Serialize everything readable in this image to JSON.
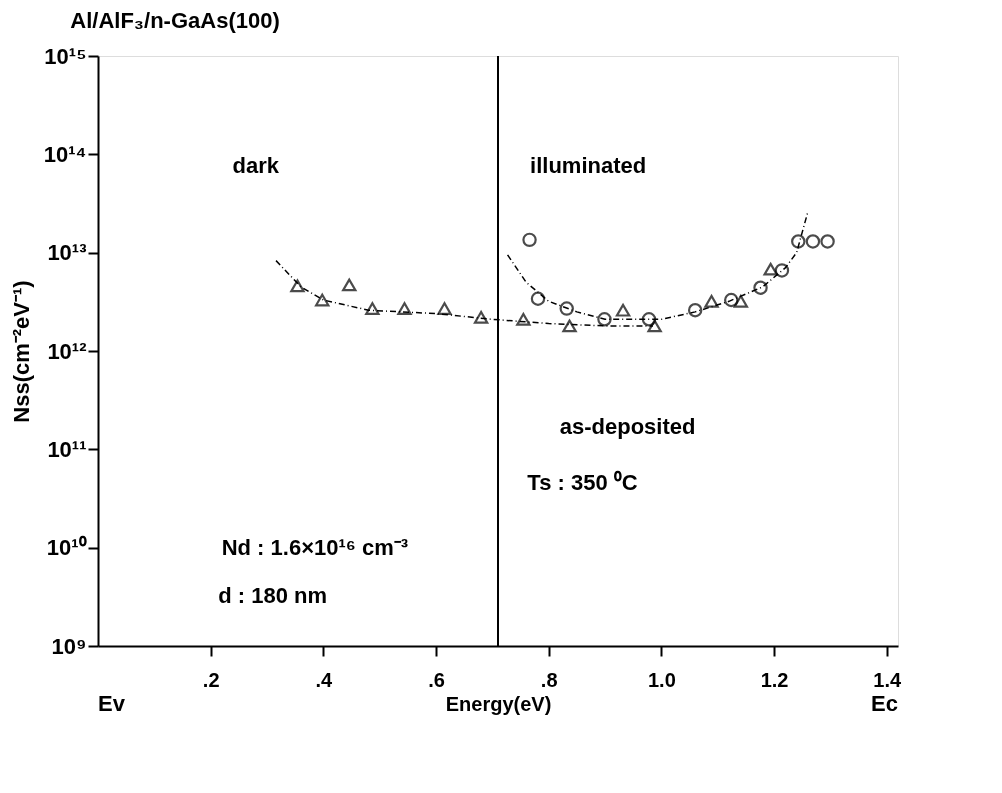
{
  "chart_data": {
    "type": "scatter",
    "title": "Al/AlF₃/n-GaAs(100)",
    "xlabel": "Energy(eV)",
    "ylabel": "Nss(cm⁻²eV⁻¹)",
    "log": "y",
    "grid": false,
    "xlim": [
      0,
      1.42
    ],
    "ylim": [
      1000000000.0,
      1000000000000000.0
    ],
    "xticks": [
      {
        "value": 0.2,
        "label": ".2"
      },
      {
        "value": 0.4,
        "label": ".4"
      },
      {
        "value": 0.6,
        "label": ".6"
      },
      {
        "value": 0.8,
        "label": ".8"
      },
      {
        "value": 1.0,
        "label": "1.0"
      },
      {
        "value": 1.2,
        "label": "1.2"
      },
      {
        "value": 1.4,
        "label": "1.4"
      }
    ],
    "yticks": [
      {
        "value": 1000000000.0,
        "label": "10⁹"
      },
      {
        "value": 10000000000.0,
        "label": "10¹⁰"
      },
      {
        "value": 100000000000.0,
        "label": "10¹¹"
      },
      {
        "value": 1000000000000.0,
        "label": "10¹²"
      },
      {
        "value": 10000000000000.0,
        "label": "10¹³"
      },
      {
        "value": 100000000000000.0,
        "label": "10¹⁴"
      },
      {
        "value": 1000000000000000.0,
        "label": "10¹⁵"
      }
    ],
    "series": [
      {
        "marker": "triangle",
        "color": "#000000",
        "x": [
          0.354,
          0.398,
          0.446,
          0.487,
          0.544,
          0.615,
          0.68,
          0.755,
          0.837,
          0.932,
          0.988,
          1.089,
          1.141,
          1.194
        ],
        "values": [
          4600000000000.0,
          3300000000000.0,
          4700000000000.0,
          2700000000000.0,
          2700000000000.0,
          2700000000000.0,
          2200000000000.0,
          2100000000000.0,
          1800000000000.0,
          2600000000000.0,
          1800000000000.0,
          3200000000000.0,
          3200000000000.0,
          6800000000000.0
        ]
      },
      {
        "marker": "circle",
        "color": "#000000",
        "x": [
          0.766,
          0.781,
          0.832,
          0.899,
          0.978,
          1.06,
          1.124,
          1.176,
          1.214,
          1.243,
          1.269,
          1.295
        ],
        "values": [
          13500000000000.0,
          3400000000000.0,
          2700000000000.0,
          2100000000000.0,
          2100000000000.0,
          2600000000000.0,
          3300000000000.0,
          4400000000000.0,
          6600000000000.0,
          13000000000000.0,
          13000000000000.0,
          13000000000000.0
        ]
      },
      {
        "type": "line",
        "line_style": "dashed",
        "color": "#000000",
        "x": [
          0.316,
          0.36,
          0.4,
          0.48,
          0.6,
          0.7,
          0.8,
          0.9,
          0.985
        ],
        "values": [
          8300000000000.0,
          4500000000000.0,
          3300000000000.0,
          2600000000000.0,
          2400000000000.0,
          2100000000000.0,
          1900000000000.0,
          1800000000000.0,
          1800000000000.0
        ]
      },
      {
        "type": "line",
        "line_style": "dashed",
        "color": "#000000",
        "x": [
          0.727,
          0.76,
          0.8,
          0.85,
          0.9,
          1.0,
          1.06,
          1.12,
          1.18,
          1.22,
          1.24,
          1.26
        ],
        "values": [
          9500000000000.0,
          5000000000000.0,
          3200000000000.0,
          2500000000000.0,
          2100000000000.0,
          2100000000000.0,
          2500000000000.0,
          3200000000000.0,
          4500000000000.0,
          7000000000000.0,
          10000000000000.0,
          26000000000000.0
        ]
      }
    ],
    "ref_lines": [
      {
        "axis": "x",
        "value": 0.71,
        "color": "#000000",
        "line_style": "solid"
      }
    ],
    "annotations": [
      "dark",
      "illuminated",
      "as-deposited",
      "Ts : 350 ⁰C",
      "Nd : 1.6×10¹⁶ cm⁻³",
      "d : 180 nm",
      "Ev",
      "Ec"
    ]
  }
}
